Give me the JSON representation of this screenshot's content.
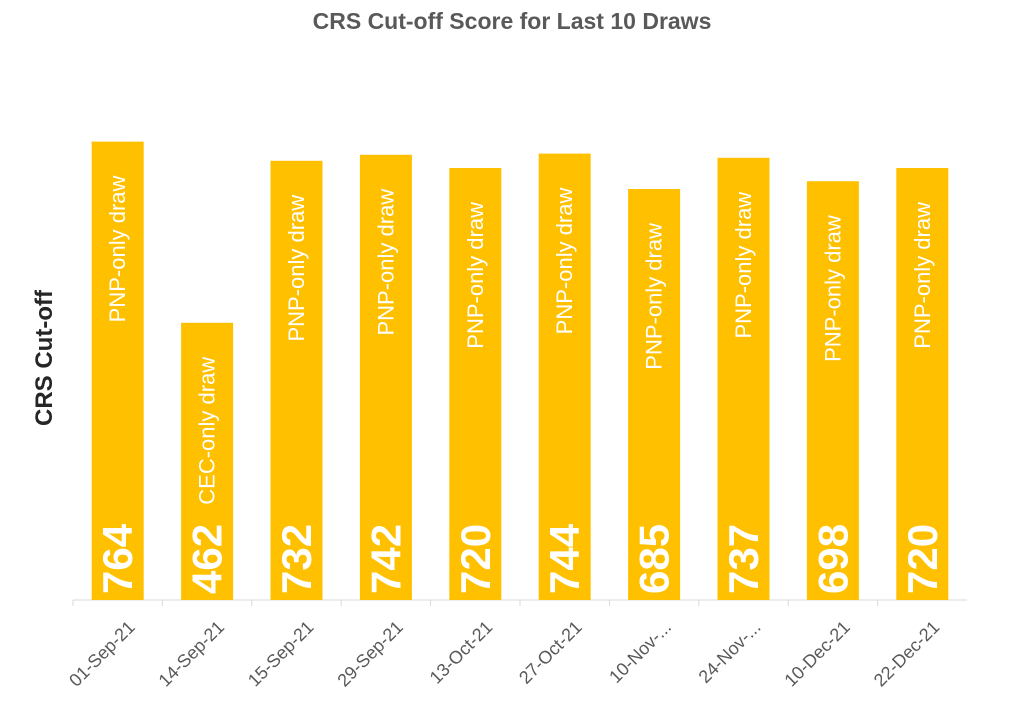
{
  "chart_data": {
    "type": "bar",
    "title": "CRS Cut-off Score for Last 10 Draws",
    "ylabel": "CRS Cut-off",
    "xlabel": "",
    "categories": [
      "01-Sep-21",
      "14-Sep-21",
      "15-Sep-21",
      "29-Sep-21",
      "13-Oct-21",
      "27-Oct-21",
      "10-Nov-...",
      "24-Nov-...",
      "10-Dec-21",
      "22-Dec-21"
    ],
    "values": [
      764,
      462,
      732,
      742,
      720,
      744,
      685,
      737,
      698,
      720
    ],
    "bar_labels": [
      "PNP-only draw",
      "CEC-only draw",
      "PNP-only draw",
      "PNP-only draw",
      "PNP-only draw",
      "PNP-only draw",
      "PNP-only draw",
      "PNP-only draw",
      "PNP-only draw",
      "PNP-only draw"
    ],
    "ylim": [
      0,
      1000
    ],
    "grid": false,
    "legend": "none",
    "colors": {
      "bar": "#FFC000",
      "label_text": "#ffffff",
      "axis_text": "#595959"
    }
  }
}
